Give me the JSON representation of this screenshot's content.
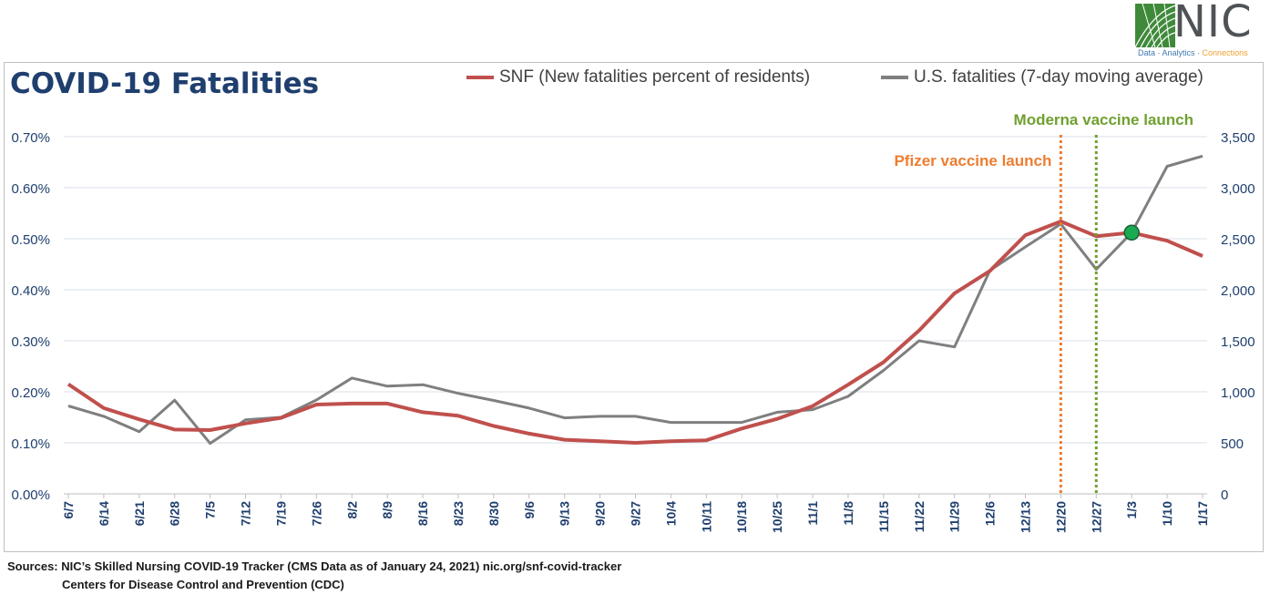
{
  "logo": {
    "name": "NIC",
    "tagline_parts": [
      "Data",
      "Analytics",
      "Connections"
    ]
  },
  "chart_data": {
    "type": "line",
    "title": "COVID-19 Fatalities",
    "categories": [
      "6/7",
      "6/14",
      "6/21",
      "6/28",
      "7/5",
      "7/12",
      "7/19",
      "7/26",
      "8/2",
      "8/9",
      "8/16",
      "8/23",
      "8/30",
      "9/6",
      "9/13",
      "9/20",
      "9/27",
      "10/4",
      "10/11",
      "10/18",
      "10/25",
      "11/1",
      "11/8",
      "11/15",
      "11/22",
      "11/29",
      "12/6",
      "12/13",
      "12/20",
      "12/27",
      "1/3",
      "1/10",
      "1/17"
    ],
    "series": [
      {
        "name": "SNF (New fatalities percent of residents)",
        "axis": "left",
        "color": "#c0504d",
        "values": [
          0.215,
          0.168,
          0.146,
          0.126,
          0.125,
          0.138,
          0.149,
          0.175,
          0.177,
          0.177,
          0.16,
          0.153,
          0.133,
          0.118,
          0.106,
          0.103,
          0.1,
          0.103,
          0.105,
          0.128,
          0.147,
          0.172,
          0.214,
          0.258,
          0.32,
          0.393,
          0.437,
          0.507,
          0.534,
          0.505,
          0.512,
          0.496,
          0.466
        ]
      },
      {
        "name": "U.S. fatalities (7-day moving average)",
        "axis": "right",
        "color": "#7f7f7f",
        "values": [
          862,
          760,
          610,
          918,
          495,
          725,
          750,
          920,
          1135,
          1055,
          1070,
          985,
          915,
          840,
          745,
          760,
          760,
          700,
          700,
          700,
          800,
          825,
          955,
          1210,
          1500,
          1440,
          2190,
          2420,
          2645,
          2200,
          2560,
          3210,
          3310
        ]
      }
    ],
    "left_axis": {
      "ylim": [
        0,
        0.7
      ],
      "ticks": [
        0,
        0.1,
        0.2,
        0.3,
        0.4,
        0.5,
        0.6,
        0.7
      ],
      "tick_labels": [
        "0.00%",
        "0.10%",
        "0.20%",
        "0.30%",
        "0.40%",
        "0.50%",
        "0.60%",
        "0.70%"
      ]
    },
    "right_axis": {
      "ylim": [
        0,
        3500
      ],
      "ticks": [
        0,
        500,
        1000,
        1500,
        2000,
        2500,
        3000,
        3500
      ],
      "tick_labels": [
        "0",
        "500",
        "1,000",
        "1,500",
        "2,000",
        "2,500",
        "3,000",
        "3,500"
      ]
    },
    "annotations": [
      {
        "label": "Pfizer vaccine launch",
        "at_category": "12/20",
        "color": "#ed7d31"
      },
      {
        "label": "Moderna vaccine launch",
        "at_category": "12/27",
        "color": "#70a030"
      }
    ],
    "highlight_point": {
      "at_category": "1/3",
      "color": "#1aab50"
    },
    "grid": true,
    "legend_position": "top"
  },
  "sources": {
    "line1": "Sources: NIC’s Skilled Nursing COVID-19 Tracker (CMS Data as of January 24, 2021)  nic.org/snf-covid-tracker",
    "line2": "Centers for Disease Control and Prevention (CDC)"
  }
}
